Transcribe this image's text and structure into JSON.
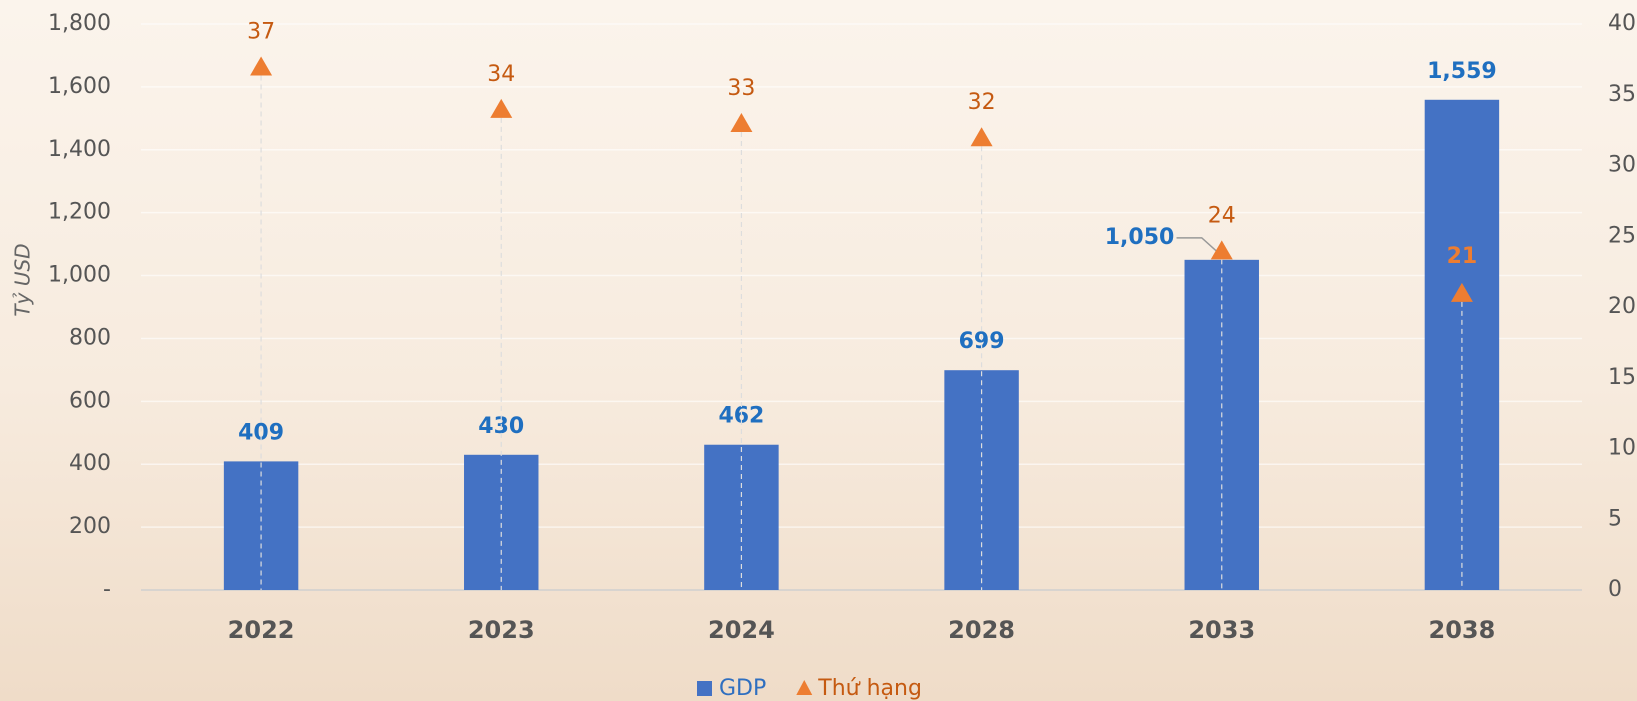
{
  "chart_data": {
    "type": "bar",
    "y_label": "Tỷ USD",
    "categories": [
      "2022",
      "2023",
      "2024",
      "2028",
      "2033",
      "2038"
    ],
    "series": [
      {
        "name": "GDP",
        "type": "bar",
        "color": "#4472c4",
        "values": [
          409,
          430,
          462,
          699,
          1050,
          1559
        ],
        "value_labels": [
          "409",
          "430",
          "462",
          "699",
          "1,050",
          "1,559"
        ]
      },
      {
        "name": "Thứ hạng",
        "type": "scatter",
        "axis": "y2",
        "color": "#ed7d31",
        "values": [
          37,
          34,
          33,
          32,
          24,
          21
        ]
      }
    ],
    "ylim": [
      0,
      1800
    ],
    "yticks": [
      {
        "value": 0,
        "label": "-"
      },
      200,
      400,
      600,
      800,
      {
        "value": 1000,
        "label": "1,000"
      },
      {
        "value": 1200,
        "label": "1,200"
      },
      {
        "value": 1400,
        "label": "1,400"
      },
      {
        "value": 1600,
        "label": "1,600"
      },
      {
        "value": 1800,
        "label": "1,800"
      }
    ],
    "y2lim": [
      0,
      40
    ],
    "y2ticks": [
      0,
      5,
      10,
      15,
      20,
      25,
      30,
      35,
      40
    ],
    "grid": true,
    "legend": "bottom"
  }
}
